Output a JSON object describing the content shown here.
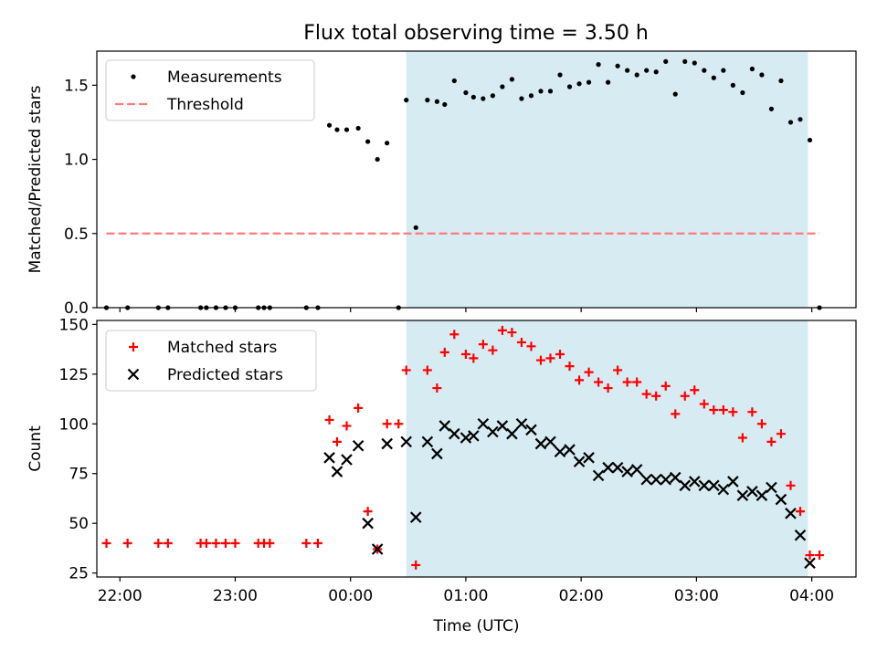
{
  "title": "Flux total observing time = 3.50 h",
  "chart_data": [
    {
      "type": "scatter",
      "ylabel": "Matched/Predicted stars",
      "xlabel": "",
      "ylim": [
        0,
        1.73
      ],
      "yticks": [
        0.0,
        0.5,
        1.0,
        1.5
      ],
      "ytick_labels": [
        "0.0",
        "0.5",
        "1.0",
        "1.5"
      ],
      "xlim": [
        "21:48",
        "04:23"
      ],
      "xticks": [
        "22:00",
        "23:00",
        "00:00",
        "01:00",
        "02:00",
        "03:00",
        "04:00"
      ],
      "shaded_span": [
        "00:29",
        "03:58"
      ],
      "legend_position": "upper-left",
      "series": [
        {
          "name": "Measurements",
          "marker": "dot",
          "color": "#000000",
          "points": [
            [
              "21:53",
              0
            ],
            [
              "22:04",
              0
            ],
            [
              "22:20",
              0
            ],
            [
              "22:25",
              0
            ],
            [
              "22:42",
              0
            ],
            [
              "22:45",
              0
            ],
            [
              "22:50",
              0
            ],
            [
              "22:55",
              0
            ],
            [
              "23:00",
              0
            ],
            [
              "23:12",
              0
            ],
            [
              "23:15",
              0
            ],
            [
              "23:18",
              0
            ],
            [
              "23:37",
              0
            ],
            [
              "23:43",
              0
            ],
            [
              "23:49",
              1.23
            ],
            [
              "23:53",
              1.2
            ],
            [
              "23:58",
              1.2
            ],
            [
              "00:04",
              1.21
            ],
            [
              "00:09",
              1.12
            ],
            [
              "00:14",
              1.0
            ],
            [
              "00:19",
              1.11
            ],
            [
              "00:25",
              0
            ],
            [
              "00:29",
              1.4
            ],
            [
              "00:34",
              0.54
            ],
            [
              "00:40",
              1.4
            ],
            [
              "00:45",
              1.39
            ],
            [
              "00:49",
              1.37
            ],
            [
              "00:54",
              1.53
            ],
            [
              "01:00",
              1.45
            ],
            [
              "01:04",
              1.42
            ],
            [
              "01:09",
              1.41
            ],
            [
              "01:14",
              1.43
            ],
            [
              "01:19",
              1.49
            ],
            [
              "01:24",
              1.54
            ],
            [
              "01:29",
              1.41
            ],
            [
              "01:34",
              1.43
            ],
            [
              "01:39",
              1.46
            ],
            [
              "01:44",
              1.46
            ],
            [
              "01:49",
              1.57
            ],
            [
              "01:54",
              1.49
            ],
            [
              "01:59",
              1.51
            ],
            [
              "02:04",
              1.52
            ],
            [
              "02:09",
              1.64
            ],
            [
              "02:14",
              1.52
            ],
            [
              "02:19",
              1.63
            ],
            [
              "02:24",
              1.6
            ],
            [
              "02:29",
              1.57
            ],
            [
              "02:34",
              1.6
            ],
            [
              "02:39",
              1.59
            ],
            [
              "02:44",
              1.66
            ],
            [
              "02:49",
              1.44
            ],
            [
              "02:54",
              1.66
            ],
            [
              "02:59",
              1.65
            ],
            [
              "03:04",
              1.6
            ],
            [
              "03:09",
              1.55
            ],
            [
              "03:14",
              1.6
            ],
            [
              "03:19",
              1.5
            ],
            [
              "03:24",
              1.45
            ],
            [
              "03:29",
              1.61
            ],
            [
              "03:34",
              1.57
            ],
            [
              "03:39",
              1.34
            ],
            [
              "03:44",
              1.53
            ],
            [
              "03:49",
              1.25
            ],
            [
              "03:54",
              1.27
            ],
            [
              "03:59",
              1.13
            ],
            [
              "04:04",
              0
            ]
          ]
        },
        {
          "name": "Threshold",
          "marker": "dashed-line",
          "color": "#ff7b7b",
          "points": [
            [
              "21:53",
              0.5
            ],
            [
              "04:04",
              0.5
            ]
          ]
        }
      ]
    },
    {
      "type": "scatter",
      "ylabel": "Count",
      "xlabel": "Time (UTC)",
      "ylim": [
        23,
        152
      ],
      "yticks": [
        25,
        50,
        75,
        100,
        125,
        150
      ],
      "ytick_labels": [
        "25",
        "50",
        "75",
        "100",
        "125",
        "150"
      ],
      "xlim": [
        "21:48",
        "04:23"
      ],
      "xticks": [
        "22:00",
        "23:00",
        "00:00",
        "01:00",
        "02:00",
        "03:00",
        "04:00"
      ],
      "xtick_labels": [
        "22:00",
        "23:00",
        "00:00",
        "01:00",
        "02:00",
        "03:00",
        "04:00"
      ],
      "shaded_span": [
        "00:29",
        "03:58"
      ],
      "legend_position": "upper-left",
      "series": [
        {
          "name": "Matched stars",
          "marker": "plus",
          "color": "#ff0000",
          "points": [
            [
              "21:53",
              40
            ],
            [
              "22:04",
              40
            ],
            [
              "22:20",
              40
            ],
            [
              "22:25",
              40
            ],
            [
              "22:42",
              40
            ],
            [
              "22:45",
              40
            ],
            [
              "22:50",
              40
            ],
            [
              "22:55",
              40
            ],
            [
              "23:00",
              40
            ],
            [
              "23:12",
              40
            ],
            [
              "23:15",
              40
            ],
            [
              "23:18",
              40
            ],
            [
              "23:37",
              40
            ],
            [
              "23:43",
              40
            ],
            [
              "23:49",
              102
            ],
            [
              "23:53",
              91
            ],
            [
              "23:58",
              99
            ],
            [
              "00:04",
              108
            ],
            [
              "00:09",
              56
            ],
            [
              "00:14",
              37
            ],
            [
              "00:19",
              100
            ],
            [
              "00:25",
              100
            ],
            [
              "00:29",
              127
            ],
            [
              "00:34",
              29
            ],
            [
              "00:40",
              127
            ],
            [
              "00:45",
              118
            ],
            [
              "00:49",
              136
            ],
            [
              "00:54",
              145
            ],
            [
              "01:00",
              135
            ],
            [
              "01:04",
              133
            ],
            [
              "01:09",
              140
            ],
            [
              "01:14",
              137
            ],
            [
              "01:19",
              147
            ],
            [
              "01:24",
              146
            ],
            [
              "01:29",
              141
            ],
            [
              "01:34",
              139
            ],
            [
              "01:39",
              132
            ],
            [
              "01:44",
              133
            ],
            [
              "01:49",
              135
            ],
            [
              "01:54",
              129
            ],
            [
              "01:59",
              122
            ],
            [
              "02:04",
              126
            ],
            [
              "02:09",
              121
            ],
            [
              "02:14",
              118
            ],
            [
              "02:19",
              127
            ],
            [
              "02:24",
              121
            ],
            [
              "02:29",
              121
            ],
            [
              "02:34",
              115
            ],
            [
              "02:39",
              114
            ],
            [
              "02:44",
              119
            ],
            [
              "02:49",
              105
            ],
            [
              "02:54",
              114
            ],
            [
              "02:59",
              117
            ],
            [
              "03:04",
              110
            ],
            [
              "03:09",
              107
            ],
            [
              "03:14",
              107
            ],
            [
              "03:19",
              106
            ],
            [
              "03:24",
              93
            ],
            [
              "03:29",
              106
            ],
            [
              "03:34",
              100
            ],
            [
              "03:39",
              91
            ],
            [
              "03:44",
              95
            ],
            [
              "03:49",
              69
            ],
            [
              "03:54",
              56
            ],
            [
              "03:59",
              34
            ],
            [
              "04:04",
              34
            ]
          ]
        },
        {
          "name": "Predicted stars",
          "marker": "x",
          "color": "#000000",
          "points": [
            [
              "23:49",
              83
            ],
            [
              "23:53",
              76
            ],
            [
              "23:58",
              82
            ],
            [
              "00:04",
              89
            ],
            [
              "00:09",
              50
            ],
            [
              "00:14",
              37
            ],
            [
              "00:19",
              90
            ],
            [
              "00:29",
              91
            ],
            [
              "00:34",
              53
            ],
            [
              "00:40",
              91
            ],
            [
              "00:45",
              85
            ],
            [
              "00:49",
              99
            ],
            [
              "00:54",
              95
            ],
            [
              "01:00",
              93
            ],
            [
              "01:04",
              94
            ],
            [
              "01:09",
              100
            ],
            [
              "01:14",
              96
            ],
            [
              "01:19",
              99
            ],
            [
              "01:24",
              95
            ],
            [
              "01:29",
              100
            ],
            [
              "01:34",
              97
            ],
            [
              "01:39",
              90
            ],
            [
              "01:44",
              91
            ],
            [
              "01:49",
              86
            ],
            [
              "01:54",
              87
            ],
            [
              "01:59",
              81
            ],
            [
              "02:04",
              83
            ],
            [
              "02:09",
              74
            ],
            [
              "02:14",
              78
            ],
            [
              "02:19",
              78
            ],
            [
              "02:24",
              76
            ],
            [
              "02:29",
              77
            ],
            [
              "02:34",
              72
            ],
            [
              "02:39",
              72
            ],
            [
              "02:44",
              72
            ],
            [
              "02:49",
              73
            ],
            [
              "02:54",
              69
            ],
            [
              "02:59",
              71
            ],
            [
              "03:04",
              69
            ],
            [
              "03:09",
              69
            ],
            [
              "03:14",
              67
            ],
            [
              "03:19",
              71
            ],
            [
              "03:24",
              64
            ],
            [
              "03:29",
              66
            ],
            [
              "03:34",
              64
            ],
            [
              "03:39",
              68
            ],
            [
              "03:44",
              62
            ],
            [
              "03:49",
              55
            ],
            [
              "03:54",
              44
            ],
            [
              "03:59",
              30
            ]
          ]
        }
      ]
    }
  ],
  "colors": {
    "shade": "#add8e6",
    "shade_alpha": 0.5
  }
}
